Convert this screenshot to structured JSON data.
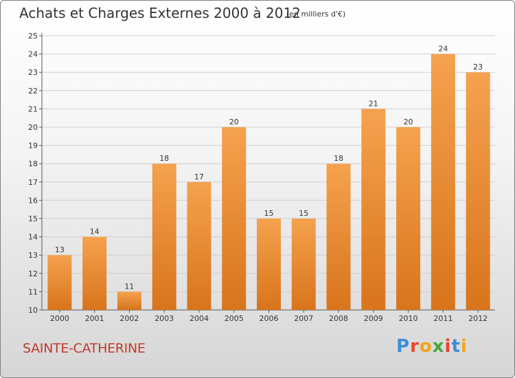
{
  "title": "Achats et Charges Externes 2000 à 2012",
  "unit_note": "(en milliers d'€)",
  "commune": "SAINTE-CATHERINE",
  "logo": {
    "text": "Proxiti",
    "letter_colors": [
      "#3a8fd6",
      "#e8442e",
      "#f2a51a",
      "#44a83c",
      "#e8442e",
      "#3a8fd6",
      "#f2a51a"
    ]
  },
  "colors": {
    "bar_top": "#f5a24e",
    "bar_bottom": "#d8741c",
    "grid": "#cfcfcf",
    "text": "#333333"
  },
  "chart_data": {
    "type": "bar",
    "title": "Achats et Charges Externes 2000 à 2012",
    "categories": [
      "2000",
      "2001",
      "2002",
      "2003",
      "2004",
      "2005",
      "2006",
      "2007",
      "2008",
      "2009",
      "2010",
      "2011",
      "2012"
    ],
    "values": [
      13,
      14,
      11,
      18,
      17,
      20,
      15,
      15,
      18,
      21,
      20,
      24,
      23
    ],
    "ylim": [
      10,
      25
    ],
    "yticks": [
      10,
      11,
      12,
      13,
      14,
      15,
      16,
      17,
      18,
      19,
      20,
      21,
      22,
      23,
      24,
      25
    ],
    "grid": true,
    "data_labels": true
  }
}
